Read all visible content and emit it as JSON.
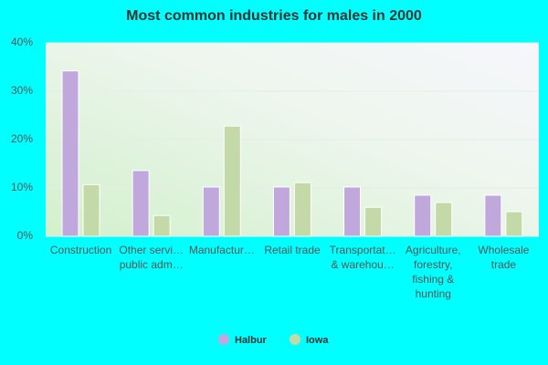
{
  "chart_data": {
    "type": "bar",
    "title": "Most common industries for males in 2000",
    "categories": [
      "Construction",
      "Other servi…\npublic adm…",
      "Manufactur…",
      "Retail trade",
      "Transportat…\n& warehou…",
      "Agriculture,\nforestry,\nfishing &\nhunting",
      "Wholesale\ntrade"
    ],
    "series": [
      {
        "name": "Halbur",
        "color": "#c0a8dc",
        "values": [
          34.2,
          13.6,
          10.2,
          10.2,
          10.2,
          8.5,
          8.5
        ]
      },
      {
        "name": "Iowa",
        "color": "#c4d9a8",
        "values": [
          10.7,
          4.3,
          22.8,
          11.1,
          6.0,
          7.0,
          5.1
        ]
      }
    ],
    "ylim": [
      0,
      40
    ],
    "yticks": [
      {
        "value": 0,
        "label": "0%"
      },
      {
        "value": 10,
        "label": "10%"
      },
      {
        "value": 20,
        "label": "20%"
      },
      {
        "value": 30,
        "label": "30%"
      },
      {
        "value": 40,
        "label": "40%"
      }
    ],
    "grid": true
  }
}
